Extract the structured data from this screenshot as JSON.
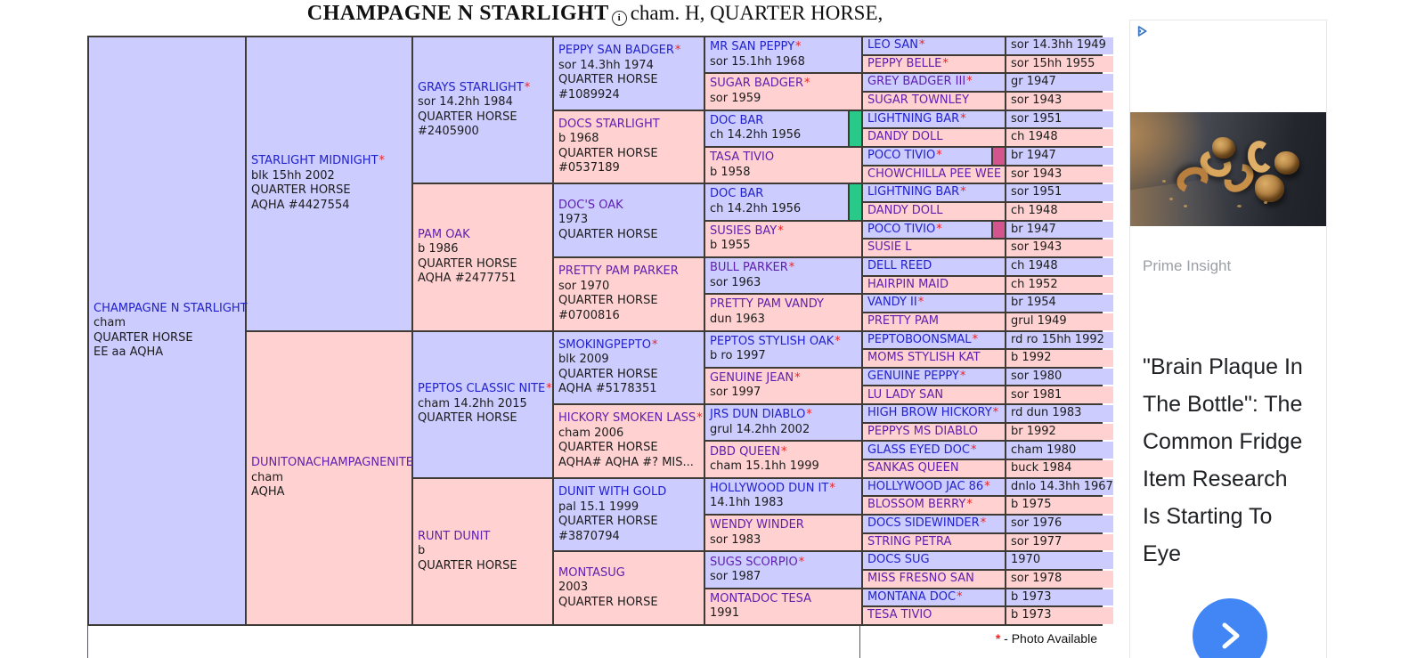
{
  "title": {
    "name": "CHAMPAGNE N STARLIGHT",
    "suffix": "cham. H, QUARTER HORSE,"
  },
  "colors": {
    "male_bg": "#ccccff",
    "female_bg": "#ffd1d1",
    "link_blue": "#2222cc",
    "link_visited": "#5e1fae",
    "asterisk_red": "#ee2222",
    "cell_border": "#3e3a36",
    "duplicate_marker_green": "#29c98a",
    "duplicate_marker_magenta": "#d4548e",
    "ad_button_blue": "#4285f4"
  },
  "pedigree": {
    "generations": [
      {
        "id": "gen1",
        "rows_per_cell": 32,
        "cells": [
          {
            "name": "CHAMPAGNE N STARLIGHT",
            "star": false,
            "sex": "m",
            "visited": false,
            "lines": [
              "cham",
              "QUARTER HORSE",
              "EE aa AQHA"
            ]
          }
        ]
      },
      {
        "id": "gen2",
        "rows_per_cell": 16,
        "cells": [
          {
            "name": "STARLIGHT MIDNIGHT",
            "star": true,
            "sex": "m",
            "visited": false,
            "lines": [
              "blk 15hh 2002",
              "QUARTER HORSE",
              "AQHA #4427554"
            ]
          },
          {
            "name": "DUNITONACHAMPAGNENITE",
            "star": false,
            "sex": "f",
            "visited": true,
            "lines": [
              "cham",
              "AQHA"
            ]
          }
        ]
      },
      {
        "id": "gen3",
        "rows_per_cell": 8,
        "cells": [
          {
            "name": "GRAYS STARLIGHT",
            "star": true,
            "sex": "m",
            "visited": false,
            "lines": [
              "sor 14.2hh 1984",
              "QUARTER HORSE",
              "#2405900"
            ]
          },
          {
            "name": "PAM OAK",
            "star": false,
            "sex": "f",
            "visited": true,
            "lines": [
              "b 1986",
              "QUARTER HORSE",
              "AQHA #2477751"
            ]
          },
          {
            "name": "PEPTOS CLASSIC NITE",
            "star": true,
            "sex": "m",
            "visited": false,
            "lines": [
              "cham 14.2hh 2015",
              "QUARTER HORSE"
            ]
          },
          {
            "name": "RUNT DUNIT",
            "star": false,
            "sex": "f",
            "visited": true,
            "lines": [
              "b",
              "QUARTER HORSE"
            ]
          }
        ]
      },
      {
        "id": "gen4",
        "rows_per_cell": 4,
        "cells": [
          {
            "name": "PEPPY SAN BADGER",
            "star": true,
            "sex": "m",
            "visited": false,
            "lines": [
              "sor 14.3hh 1974",
              "QUARTER HORSE",
              "#1089924"
            ]
          },
          {
            "name": "DOCS STARLIGHT",
            "star": false,
            "sex": "f",
            "visited": true,
            "lines": [
              "b 1968",
              "QUARTER HORSE",
              "#0537189"
            ]
          },
          {
            "name": "DOC'S OAK",
            "star": false,
            "sex": "m",
            "visited": true,
            "lines": [
              "1973",
              "QUARTER HORSE"
            ]
          },
          {
            "name": "PRETTY PAM PARKER",
            "star": false,
            "sex": "f",
            "visited": true,
            "lines": [
              "sor 1970",
              "QUARTER HORSE",
              "#0700816"
            ]
          },
          {
            "name": "SMOKINGPEPTO",
            "star": true,
            "sex": "m",
            "visited": false,
            "lines": [
              "blk 2009",
              "QUARTER HORSE",
              "AQHA #5178351"
            ]
          },
          {
            "name": "HICKORY SMOKEN LASS",
            "star": true,
            "sex": "f",
            "visited": true,
            "lines": [
              "cham 2006",
              "QUARTER HORSE",
              "AQHA# AQHA #? MIS..."
            ]
          },
          {
            "name": "DUNIT WITH GOLD",
            "star": false,
            "sex": "m",
            "visited": false,
            "lines": [
              "pal 15.1 1999",
              "QUARTER HORSE",
              "#3870794"
            ]
          },
          {
            "name": "MONTASUG",
            "star": false,
            "sex": "f",
            "visited": true,
            "lines": [
              "2003",
              "QUARTER HORSE"
            ]
          }
        ]
      },
      {
        "id": "gen5",
        "rows_per_cell": 2,
        "cells": [
          {
            "name": "MR SAN PEPPY",
            "star": true,
            "sex": "m",
            "visited": false,
            "lines": [
              "sor 15.1hh 1968"
            ]
          },
          {
            "name": "SUGAR BADGER",
            "star": true,
            "sex": "f",
            "visited": true,
            "lines": [
              "sor 1959"
            ]
          },
          {
            "name": "DOC BAR",
            "star": false,
            "sex": "m",
            "visited": false,
            "lines": [
              "ch 14.2hh 1956"
            ],
            "marker": "green"
          },
          {
            "name": "TASA TIVIO",
            "star": false,
            "sex": "f",
            "visited": true,
            "lines": [
              "b 1958"
            ]
          },
          {
            "name": "DOC BAR",
            "star": false,
            "sex": "m",
            "visited": false,
            "lines": [
              "ch 14.2hh 1956"
            ],
            "marker": "green"
          },
          {
            "name": "SUSIES BAY",
            "star": true,
            "sex": "f",
            "visited": true,
            "lines": [
              "b 1955"
            ]
          },
          {
            "name": "BULL PARKER",
            "star": true,
            "sex": "m",
            "visited": true,
            "lines": [
              "sor 1963"
            ]
          },
          {
            "name": "PRETTY PAM VANDY",
            "star": false,
            "sex": "f",
            "visited": true,
            "lines": [
              "dun 1963"
            ]
          },
          {
            "name": "PEPTOS STYLISH OAK",
            "star": true,
            "sex": "m",
            "visited": false,
            "lines": [
              "b ro 1997"
            ]
          },
          {
            "name": "GENUINE JEAN",
            "star": true,
            "sex": "f",
            "visited": true,
            "lines": [
              "sor 1997"
            ]
          },
          {
            "name": "JRS DUN DIABLO",
            "star": true,
            "sex": "m",
            "visited": false,
            "lines": [
              "grul 14.2hh 2002"
            ]
          },
          {
            "name": "DBD QUEEN",
            "star": true,
            "sex": "f",
            "visited": true,
            "lines": [
              "cham 15.1hh 1999"
            ]
          },
          {
            "name": "HOLLYWOOD DUN IT",
            "star": true,
            "sex": "m",
            "visited": false,
            "lines": [
              "14.1hh 1983"
            ]
          },
          {
            "name": "WENDY WINDER",
            "star": false,
            "sex": "f",
            "visited": true,
            "lines": [
              "sor 1983"
            ]
          },
          {
            "name": "SUGS SCORPIO",
            "star": true,
            "sex": "m",
            "visited": true,
            "lines": [
              "sor 1987"
            ]
          },
          {
            "name": "MONTADOC TESA",
            "star": false,
            "sex": "f",
            "visited": true,
            "lines": [
              "1991"
            ]
          }
        ]
      },
      {
        "id": "gen6",
        "rows_per_cell": 1,
        "cells": [
          {
            "name": "LEO SAN",
            "star": true,
            "sex": "m",
            "visited": false,
            "info": "sor 14.3hh 1949"
          },
          {
            "name": "PEPPY BELLE",
            "star": true,
            "sex": "f",
            "visited": true,
            "info": "sor 15hh 1955"
          },
          {
            "name": "GREY BADGER III",
            "star": true,
            "sex": "m",
            "visited": true,
            "info": "gr 1947"
          },
          {
            "name": "SUGAR TOWNLEY",
            "star": false,
            "sex": "f",
            "visited": true,
            "info": "sor 1943"
          },
          {
            "name": "LIGHTNING BAR",
            "star": true,
            "sex": "m",
            "visited": false,
            "info": "sor 1951"
          },
          {
            "name": "DANDY DOLL",
            "star": false,
            "sex": "f",
            "visited": true,
            "info": "ch 1948"
          },
          {
            "name": "POCO TIVIO",
            "star": true,
            "sex": "m",
            "visited": false,
            "info": "br 1947",
            "marker": "magenta"
          },
          {
            "name": "CHOWCHILLA PEE WEE",
            "star": false,
            "sex": "f",
            "visited": true,
            "info": "sor 1943"
          },
          {
            "name": "LIGHTNING BAR",
            "star": true,
            "sex": "m",
            "visited": false,
            "info": "sor 1951"
          },
          {
            "name": "DANDY DOLL",
            "star": false,
            "sex": "f",
            "visited": true,
            "info": "ch 1948"
          },
          {
            "name": "POCO TIVIO",
            "star": true,
            "sex": "m",
            "visited": false,
            "info": "br 1947",
            "marker": "magenta"
          },
          {
            "name": "SUSIE L",
            "star": false,
            "sex": "f",
            "visited": true,
            "info": "sor 1943"
          },
          {
            "name": "DELL REED",
            "star": false,
            "sex": "m",
            "visited": false,
            "info": "ch 1948"
          },
          {
            "name": "HAIRPIN MAID",
            "star": false,
            "sex": "f",
            "visited": true,
            "info": "ch 1952"
          },
          {
            "name": "VANDY II",
            "star": true,
            "sex": "m",
            "visited": false,
            "info": "br 1954"
          },
          {
            "name": "PRETTY PAM",
            "star": false,
            "sex": "f",
            "visited": true,
            "info": "grul 1949"
          },
          {
            "name": "PEPTOBOONSMAL",
            "star": true,
            "sex": "m",
            "visited": false,
            "info": "rd ro 15hh 1992"
          },
          {
            "name": "MOMS STYLISH KAT",
            "star": false,
            "sex": "f",
            "visited": true,
            "info": "b 1992"
          },
          {
            "name": "GENUINE PEPPY",
            "star": true,
            "sex": "m",
            "visited": false,
            "info": "sor 1980"
          },
          {
            "name": "LU LADY SAN",
            "star": false,
            "sex": "f",
            "visited": true,
            "info": "sor 1981"
          },
          {
            "name": "HIGH BROW HICKORY",
            "star": true,
            "sex": "m",
            "visited": false,
            "info": "rd dun 1983"
          },
          {
            "name": "PEPPYS MS DIABLO",
            "star": false,
            "sex": "f",
            "visited": true,
            "info": "br 1992"
          },
          {
            "name": "GLASS EYED DOC",
            "star": true,
            "sex": "m",
            "visited": false,
            "info": "cham 1980"
          },
          {
            "name": "SANKAS QUEEN",
            "star": false,
            "sex": "f",
            "visited": true,
            "info": "buck 1984"
          },
          {
            "name": "HOLLYWOOD JAC 86",
            "star": true,
            "sex": "m",
            "visited": false,
            "info": "dnlo 14.3hh 1967"
          },
          {
            "name": "BLOSSOM BERRY",
            "star": true,
            "sex": "f",
            "visited": true,
            "info": "b 1975"
          },
          {
            "name": "DOCS SIDEWINDER",
            "star": true,
            "sex": "m",
            "visited": false,
            "info": "sor 1976"
          },
          {
            "name": "STRING PETRA",
            "star": false,
            "sex": "f",
            "visited": true,
            "info": "sor 1977"
          },
          {
            "name": "DOCS SUG",
            "star": false,
            "sex": "m",
            "visited": false,
            "info": "1970"
          },
          {
            "name": "MISS FRESNO SAN",
            "star": false,
            "sex": "f",
            "visited": true,
            "info": "sor 1978"
          },
          {
            "name": "MONTANA DOC",
            "star": true,
            "sex": "m",
            "visited": false,
            "info": "b 1973"
          },
          {
            "name": "TESA TIVIO",
            "star": false,
            "sex": "f",
            "visited": true,
            "info": "b 1973"
          }
        ]
      }
    ]
  },
  "footer": {
    "legend_star": "*",
    "legend_text": "- Photo Available"
  },
  "ad": {
    "adchoices_icon": "adchoices-icon",
    "image": "nuts-photo",
    "attribution": "Prime Insight",
    "headline": "\"Brain Plaque In The Bottle\": The Common Fridge Item Research Is Starting To Eye",
    "cta_icon": "chevron-right-icon"
  }
}
